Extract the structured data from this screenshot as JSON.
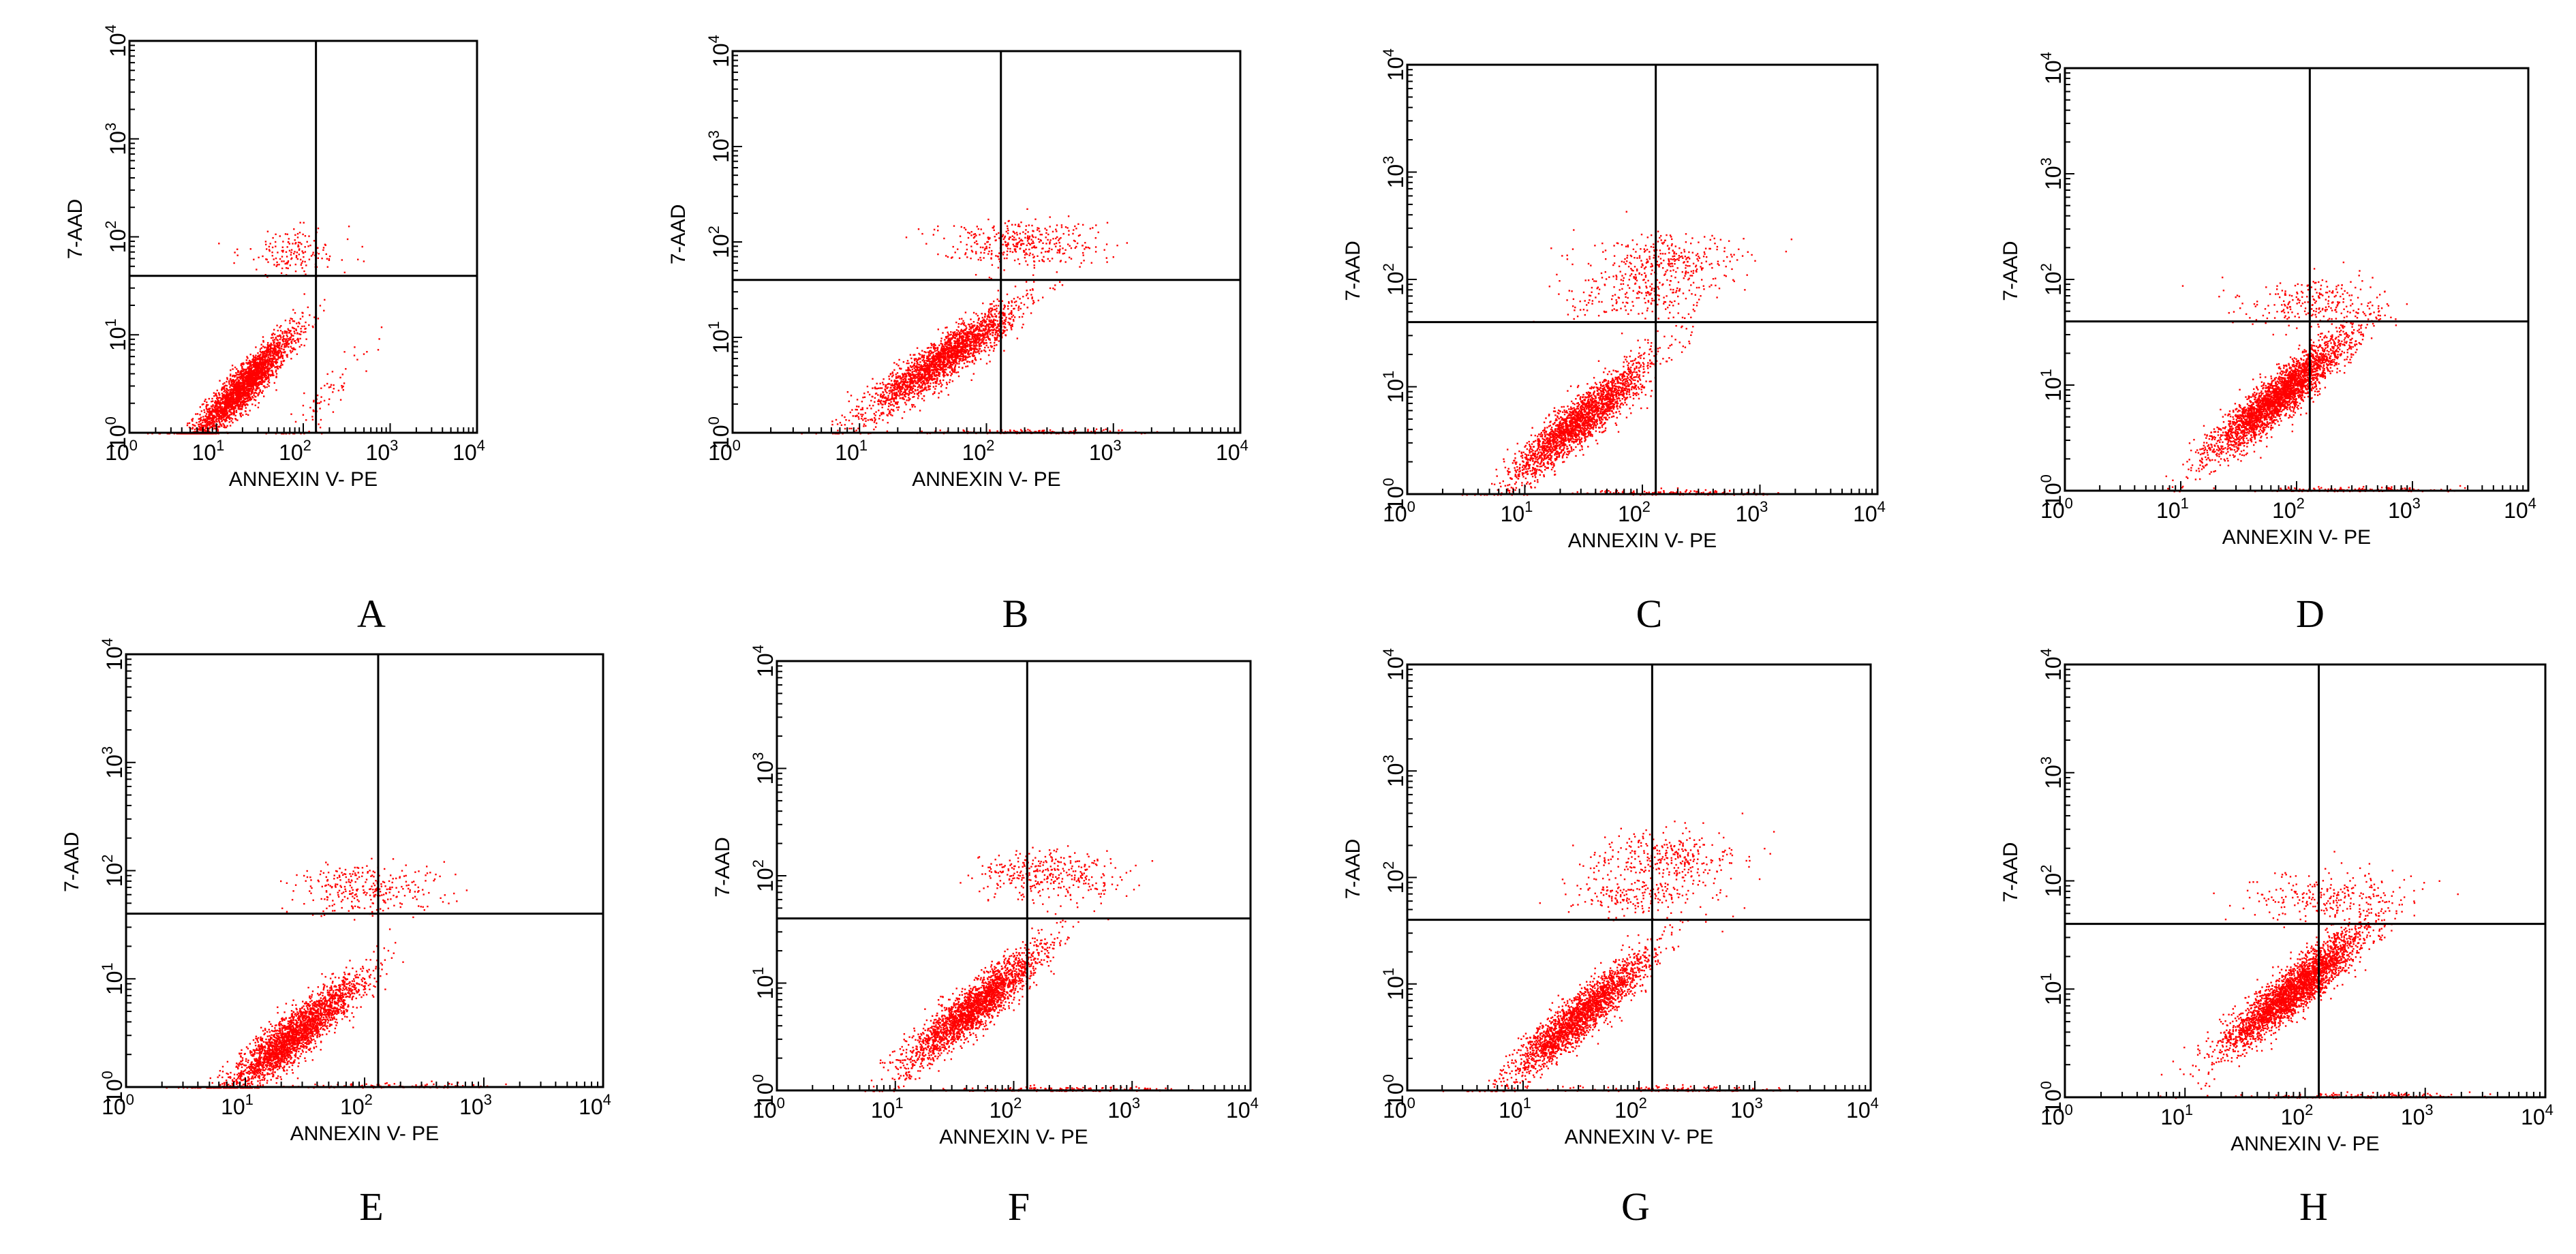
{
  "figure": {
    "dot_color": "#ff0000",
    "line_color": "#000000"
  },
  "chart_data": [
    {
      "type": "scatter",
      "panel_label": "A",
      "xlabel": "ANNEXIN V- PE",
      "ylabel": "7-AAD",
      "xscale": "log",
      "yscale": "log",
      "xlim": [
        1,
        10000
      ],
      "ylim": [
        1,
        10000
      ],
      "x_tick_labels": [
        "10^0",
        "10^1",
        "10^2",
        "10^3",
        "10^4"
      ],
      "y_tick_labels": [
        "10^0",
        "10^1",
        "10^2",
        "10^3",
        "10^4"
      ],
      "quadrant_gate": {
        "x": 140,
        "y": 40
      },
      "clusters": [
        {
          "x": 20,
          "y": 3,
          "n": 2600
        },
        {
          "x": 80,
          "y": 70,
          "n": 160
        },
        {
          "x": 150,
          "y": 2,
          "n": 80
        }
      ]
    },
    {
      "type": "scatter",
      "panel_label": "B",
      "xlabel": "ANNEXIN V- PE",
      "ylabel": "7-AAD",
      "xscale": "log",
      "yscale": "log",
      "xlim": [
        1,
        10000
      ],
      "ylim": [
        1,
        10000
      ],
      "x_tick_labels": [
        "10^0",
        "10^1",
        "10^2",
        "10^3",
        "10^4"
      ],
      "y_tick_labels": [
        "10^0",
        "10^1",
        "10^2",
        "10^3",
        "10^4"
      ],
      "quadrant_gate": {
        "x": 130,
        "y": 40
      },
      "clusters": [
        {
          "x": 45,
          "y": 6,
          "n": 2400
        },
        {
          "x": 180,
          "y": 100,
          "n": 380
        },
        {
          "x": 250,
          "y": 1.05,
          "n": 150
        }
      ]
    },
    {
      "type": "scatter",
      "panel_label": "C",
      "xlabel": "ANNEXIN V- PE",
      "ylabel": "7-AAD",
      "xscale": "log",
      "yscale": "log",
      "xlim": [
        1,
        10000
      ],
      "ylim": [
        1,
        10000
      ],
      "x_tick_labels": [
        "10^0",
        "10^1",
        "10^2",
        "10^3",
        "10^4"
      ],
      "y_tick_labels": [
        "10^0",
        "10^1",
        "10^2",
        "10^3",
        "10^4"
      ],
      "quadrant_gate": {
        "x": 130,
        "y": 40
      },
      "clusters": [
        {
          "x": 30,
          "y": 5,
          "n": 2300
        },
        {
          "x": 170,
          "y": 150,
          "n": 300
        },
        {
          "x": 100,
          "y": 70,
          "n": 220
        },
        {
          "x": 200,
          "y": 1.05,
          "n": 150
        }
      ]
    },
    {
      "type": "scatter",
      "panel_label": "D",
      "xlabel": "ANNEXIN V- PE",
      "ylabel": "7-AAD",
      "xscale": "log",
      "yscale": "log",
      "xlim": [
        1,
        10000
      ],
      "ylim": [
        1,
        10000
      ],
      "x_tick_labels": [
        "10^0",
        "10^1",
        "10^2",
        "10^3",
        "10^4"
      ],
      "y_tick_labels": [
        "10^0",
        "10^1",
        "10^2",
        "10^3",
        "10^4"
      ],
      "quadrant_gate": {
        "x": 130,
        "y": 40
      },
      "clusters": [
        {
          "x": 70,
          "y": 8,
          "n": 3000
        },
        {
          "x": 150,
          "y": 60,
          "n": 250
        },
        {
          "x": 300,
          "y": 1.05,
          "n": 150
        }
      ]
    },
    {
      "type": "scatter",
      "panel_label": "E",
      "xlabel": "ANNEXIN V- PE",
      "ylabel": "7-AAD",
      "xscale": "log",
      "yscale": "log",
      "xlim": [
        1,
        10000
      ],
      "ylim": [
        1,
        10000
      ],
      "x_tick_labels": [
        "10^0",
        "10^1",
        "10^2",
        "10^3",
        "10^4"
      ],
      "y_tick_labels": [
        "10^0",
        "10^1",
        "10^2",
        "10^3",
        "10^4"
      ],
      "quadrant_gate": {
        "x": 130,
        "y": 40
      },
      "clusters": [
        {
          "x": 25,
          "y": 3,
          "n": 2600
        },
        {
          "x": 100,
          "y": 70,
          "n": 300
        },
        {
          "x": 200,
          "y": 1.05,
          "n": 100
        }
      ]
    },
    {
      "type": "scatter",
      "panel_label": "F",
      "xlabel": "ANNEXIN V- PE",
      "ylabel": "7-AAD",
      "xscale": "log",
      "yscale": "log",
      "xlim": [
        1,
        10000
      ],
      "ylim": [
        1,
        10000
      ],
      "x_tick_labels": [
        "10^0",
        "10^1",
        "10^2",
        "10^3",
        "10^4"
      ],
      "y_tick_labels": [
        "10^0",
        "10^1",
        "10^2",
        "10^3",
        "10^4"
      ],
      "quadrant_gate": {
        "x": 130,
        "y": 40
      },
      "clusters": [
        {
          "x": 45,
          "y": 6,
          "n": 2400
        },
        {
          "x": 200,
          "y": 100,
          "n": 350
        },
        {
          "x": 250,
          "y": 1.05,
          "n": 150
        }
      ]
    },
    {
      "type": "scatter",
      "panel_label": "G",
      "xlabel": "ANNEXIN V- PE",
      "ylabel": "7-AAD",
      "xscale": "log",
      "yscale": "log",
      "xlim": [
        1,
        10000
      ],
      "ylim": [
        1,
        10000
      ],
      "x_tick_labels": [
        "10^0",
        "10^1",
        "10^2",
        "10^3",
        "10^4"
      ],
      "y_tick_labels": [
        "10^0",
        "10^1",
        "10^2",
        "10^3",
        "10^4"
      ],
      "quadrant_gate": {
        "x": 130,
        "y": 40
      },
      "clusters": [
        {
          "x": 30,
          "y": 5,
          "n": 2300
        },
        {
          "x": 180,
          "y": 160,
          "n": 300
        },
        {
          "x": 100,
          "y": 70,
          "n": 220
        },
        {
          "x": 200,
          "y": 1.05,
          "n": 150
        }
      ]
    },
    {
      "type": "scatter",
      "panel_label": "H",
      "xlabel": "ANNEXIN V- PE",
      "ylabel": "7-AAD",
      "xscale": "log",
      "yscale": "log",
      "xlim": [
        1,
        10000
      ],
      "ylim": [
        1,
        10000
      ],
      "x_tick_labels": [
        "10^0",
        "10^1",
        "10^2",
        "10^3",
        "10^4"
      ],
      "y_tick_labels": [
        "10^0",
        "10^1",
        "10^2",
        "10^3",
        "10^4"
      ],
      "quadrant_gate": {
        "x": 130,
        "y": 40
      },
      "clusters": [
        {
          "x": 80,
          "y": 10,
          "n": 3000
        },
        {
          "x": 150,
          "y": 70,
          "n": 250
        },
        {
          "x": 300,
          "y": 1.05,
          "n": 150
        }
      ]
    }
  ]
}
